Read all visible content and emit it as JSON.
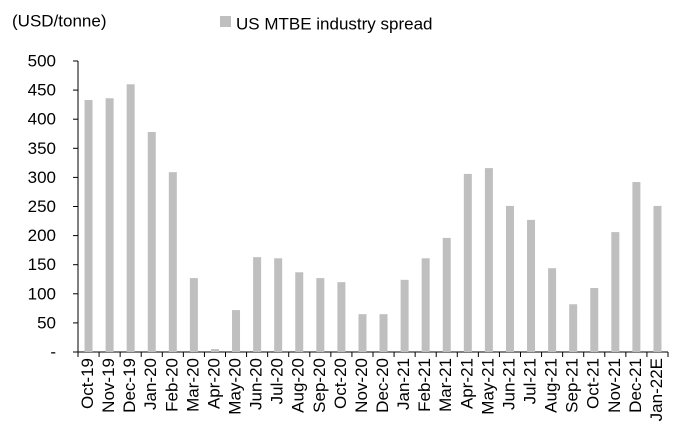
{
  "chart_data": {
    "type": "bar",
    "y_label": "(USD/tonne)",
    "series": [
      {
        "name": "US MTBE industry spread",
        "color": "#bfbfbf",
        "values": [
          433,
          436,
          460,
          378,
          309,
          127,
          5,
          72,
          163,
          161,
          137,
          127,
          120,
          65,
          65,
          124,
          161,
          196,
          306,
          316,
          251,
          227,
          144,
          82,
          110,
          206,
          292,
          251
        ]
      }
    ],
    "categories": [
      "Oct-19",
      "Nov-19",
      "Dec-19",
      "Jan-20",
      "Feb-20",
      "Mar-20",
      "Apr-20",
      "May-20",
      "Jun-20",
      "Jul-20",
      "Aug-20",
      "Sep-20",
      "Oct-20",
      "Nov-20",
      "Dec-20",
      "Jan-21",
      "Feb-21",
      "Mar-21",
      "Apr-21",
      "May-21",
      "Jun-21",
      "Jul-21",
      "Aug-21",
      "Sep-21",
      "Oct-21",
      "Nov-21",
      "Dec-21",
      "Jan-22E"
    ],
    "ylim": [
      0,
      500
    ],
    "yticks": [
      {
        "value": 0,
        "label": "-"
      },
      50,
      100,
      150,
      200,
      250,
      300,
      350,
      400,
      450,
      500
    ],
    "grid": false
  }
}
